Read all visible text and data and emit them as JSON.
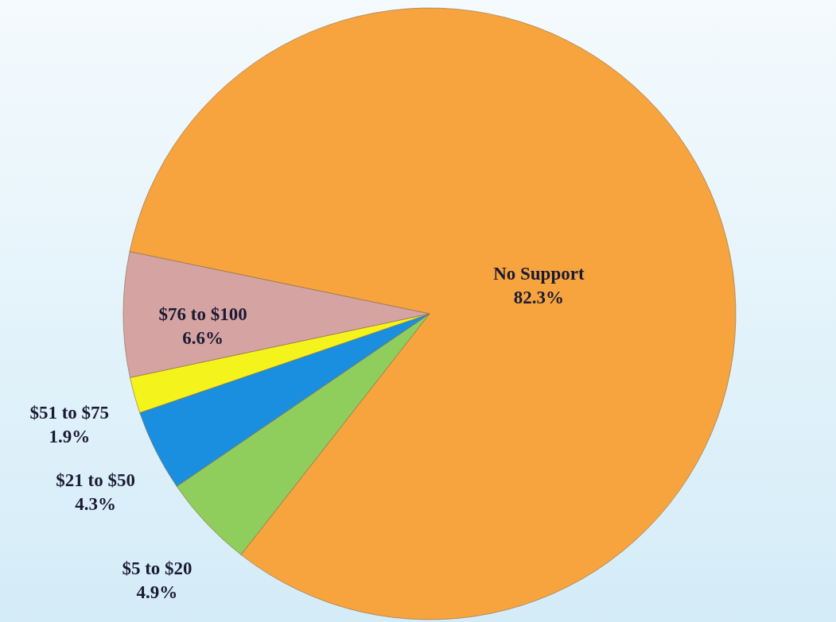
{
  "chart_data": {
    "type": "pie",
    "categories": [
      "No Support",
      "$5 to $20",
      "$21 to $50",
      "$51 to $75",
      "$76 to $100"
    ],
    "values": [
      82.3,
      4.9,
      4.3,
      1.9,
      6.6
    ],
    "value_labels": [
      "82.3%",
      "4.9%",
      "4.3%",
      "1.9%",
      "6.6%"
    ],
    "colors": [
      "#f7a43f",
      "#8fcd5c",
      "#1b8fdf",
      "#f4f41c",
      "#d6a3a3"
    ]
  }
}
